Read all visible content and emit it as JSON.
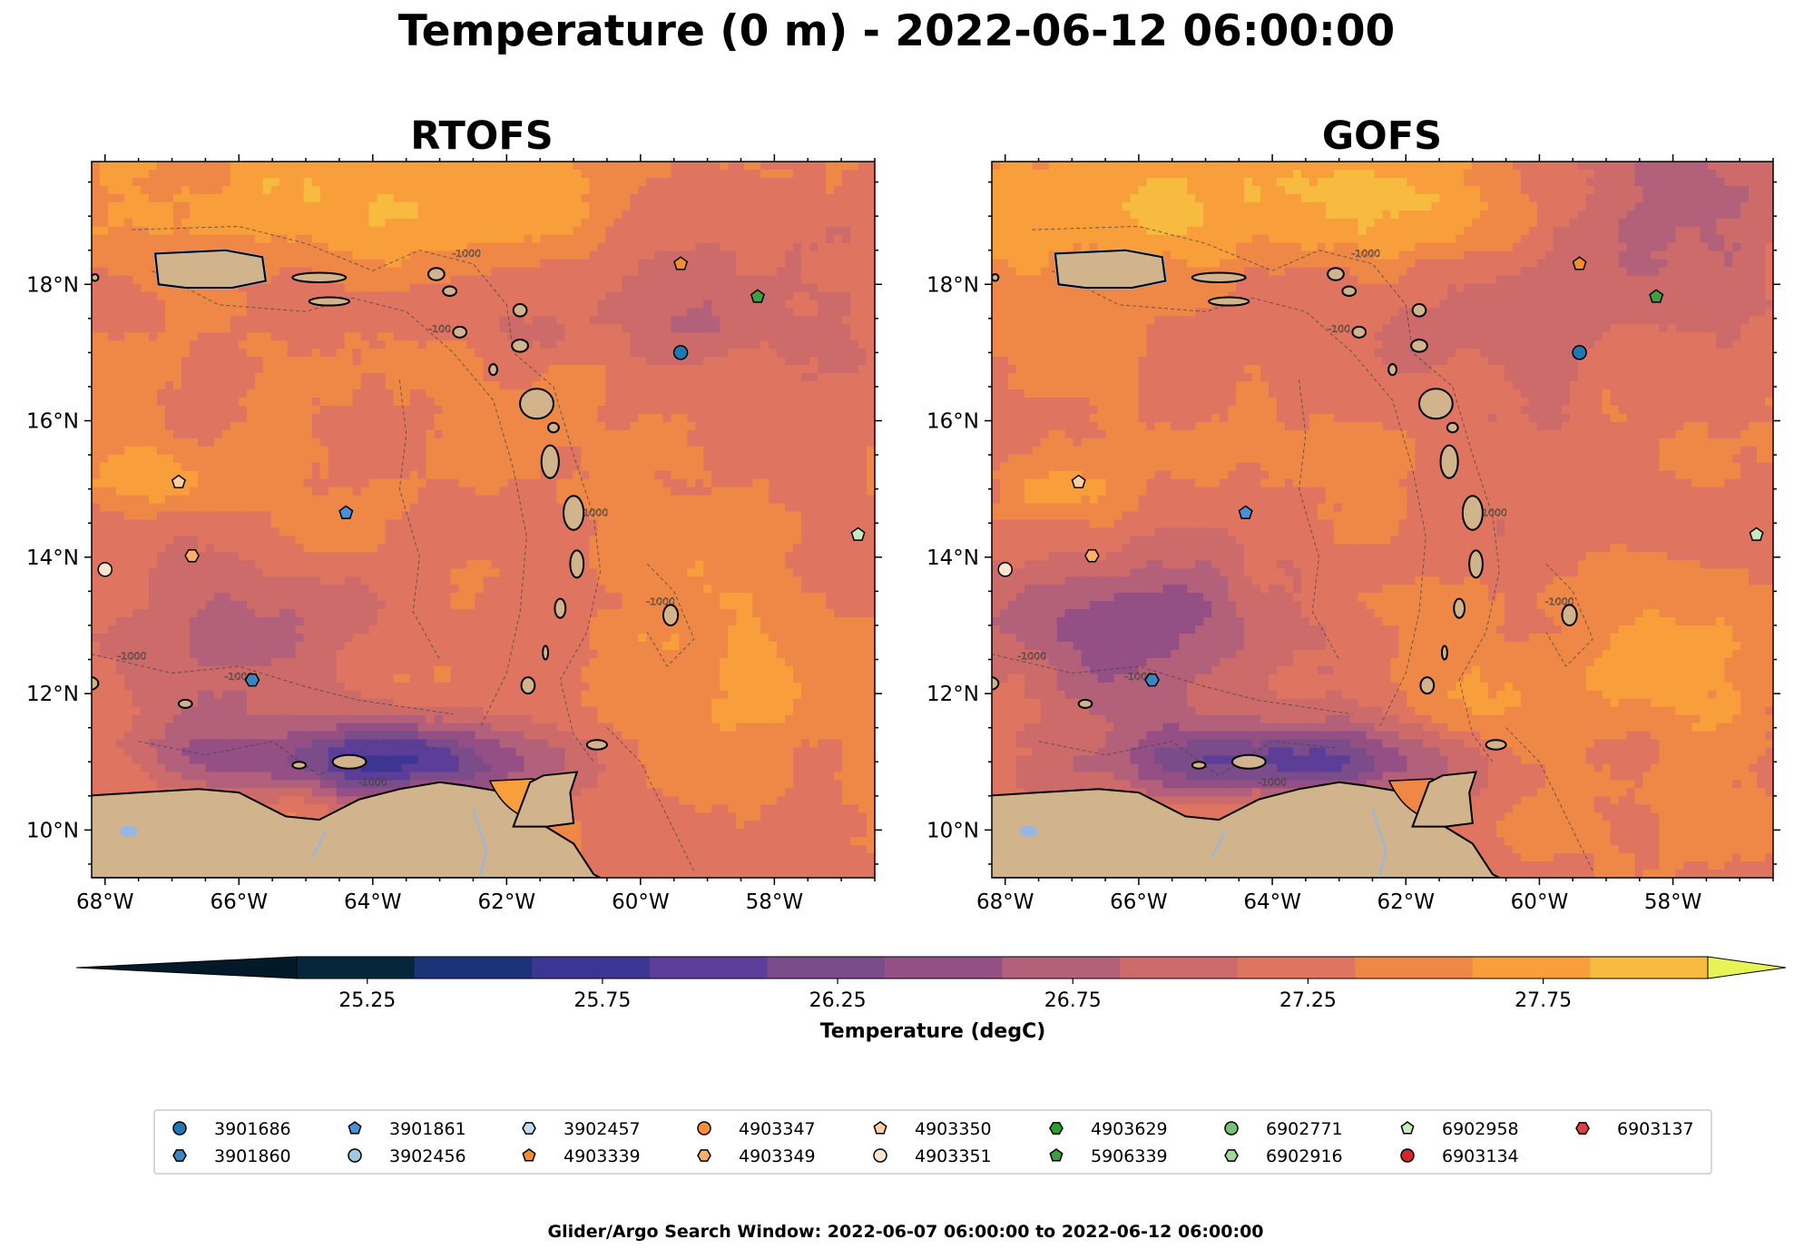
{
  "figure": {
    "suptitle": "Temperature (0 m) - 2022-06-12 06:00:00",
    "footer": "Glider/Argo Search Window: 2022-06-07 06:00:00 to 2022-06-12 06:00:00"
  },
  "chart_data": {
    "type": "heatmap",
    "panels": [
      {
        "title": "RTOFS",
        "model": "rtofs"
      },
      {
        "title": "GOFS",
        "model": "gofs"
      }
    ],
    "lon_range": [
      -68.2,
      -56.5
    ],
    "lat_range": [
      9.3,
      19.8
    ],
    "x_ticks": [
      {
        "v": -68,
        "label": "68°W"
      },
      {
        "v": -66,
        "label": "66°W"
      },
      {
        "v": -64,
        "label": "64°W"
      },
      {
        "v": -62,
        "label": "62°W"
      },
      {
        "v": -60,
        "label": "60°W"
      },
      {
        "v": -58,
        "label": "58°W"
      }
    ],
    "y_ticks": [
      {
        "v": 10,
        "label": "10°N"
      },
      {
        "v": 12,
        "label": "12°N"
      },
      {
        "v": 14,
        "label": "14°N"
      },
      {
        "v": 16,
        "label": "16°N"
      },
      {
        "v": 18,
        "label": "18°N"
      }
    ],
    "colorbar": {
      "label": "Temperature (degC)",
      "extend": "both",
      "tick_values": [
        25.25,
        25.75,
        26.25,
        26.75,
        27.25,
        27.75
      ],
      "tick_labels": [
        "25.25",
        "25.75",
        "26.25",
        "26.75",
        "27.25",
        "27.75"
      ],
      "levels": [
        25.1,
        25.35,
        25.6,
        25.85,
        26.1,
        26.35,
        26.6,
        26.85,
        27.1,
        27.35,
        27.6,
        27.85,
        28.1
      ],
      "colors": [
        "#04253a",
        "#1b3178",
        "#3c3594",
        "#5c3d98",
        "#7a4c8a",
        "#944f84",
        "#b3607a",
        "#cc6b6a",
        "#df7560",
        "#ef8847",
        "#f89e3a",
        "#f7bb40",
        "#e6f456"
      ],
      "under_color": "#02192a",
      "over_color": "#e6f456"
    },
    "land_color": "#d2b48c",
    "lake_color": "#97b6e1",
    "bathymetry_contours": [
      "-100",
      "-1000"
    ],
    "floats": [
      {
        "id": "3901686",
        "lon": -59.4,
        "lat": 17.0,
        "marker": "circle",
        "color": "#1f77b4"
      },
      {
        "id": "3901860",
        "lon": -65.8,
        "lat": 12.2,
        "marker": "hexagon",
        "color": "#3a86c1"
      },
      {
        "id": "3901861",
        "lon": -64.4,
        "lat": 14.65,
        "marker": "pentagon",
        "color": "#4a90d9"
      },
      {
        "id": "3902456",
        "lon": null,
        "lat": null,
        "marker": "circle",
        "color": "#9ecae1"
      },
      {
        "id": "3902457",
        "lon": null,
        "lat": null,
        "marker": "hexagon",
        "color": "#c6dbef"
      },
      {
        "id": "4903339",
        "lon": -59.4,
        "lat": 18.3,
        "marker": "pentagon",
        "color": "#f28e2b"
      },
      {
        "id": "4903347",
        "lon": null,
        "lat": null,
        "marker": "circle",
        "color": "#fd8d3c"
      },
      {
        "id": "4903349",
        "lon": -66.7,
        "lat": 14.02,
        "marker": "hexagon",
        "color": "#fdae6b"
      },
      {
        "id": "4903350",
        "lon": -66.9,
        "lat": 15.1,
        "marker": "pentagon",
        "color": "#fdd0a2"
      },
      {
        "id": "4903351",
        "lon": -68.0,
        "lat": 13.82,
        "marker": "circle",
        "color": "#fee6ce"
      },
      {
        "id": "4903629",
        "lon": null,
        "lat": null,
        "marker": "hexagon",
        "color": "#2ca02c"
      },
      {
        "id": "5906339",
        "lon": -58.25,
        "lat": 17.82,
        "marker": "pentagon",
        "color": "#3ca03c"
      },
      {
        "id": "6902771",
        "lon": null,
        "lat": null,
        "marker": "circle",
        "color": "#74c476"
      },
      {
        "id": "6902916",
        "lon": null,
        "lat": null,
        "marker": "hexagon",
        "color": "#a1d99b"
      },
      {
        "id": "6902958",
        "lon": -56.75,
        "lat": 14.33,
        "marker": "pentagon",
        "color": "#c7e9c0"
      },
      {
        "id": "6903134",
        "lon": null,
        "lat": null,
        "marker": "circle",
        "color": "#d62728"
      },
      {
        "id": "6903137",
        "lon": null,
        "lat": null,
        "marker": "hexagon",
        "color": "#e04040"
      }
    ]
  }
}
